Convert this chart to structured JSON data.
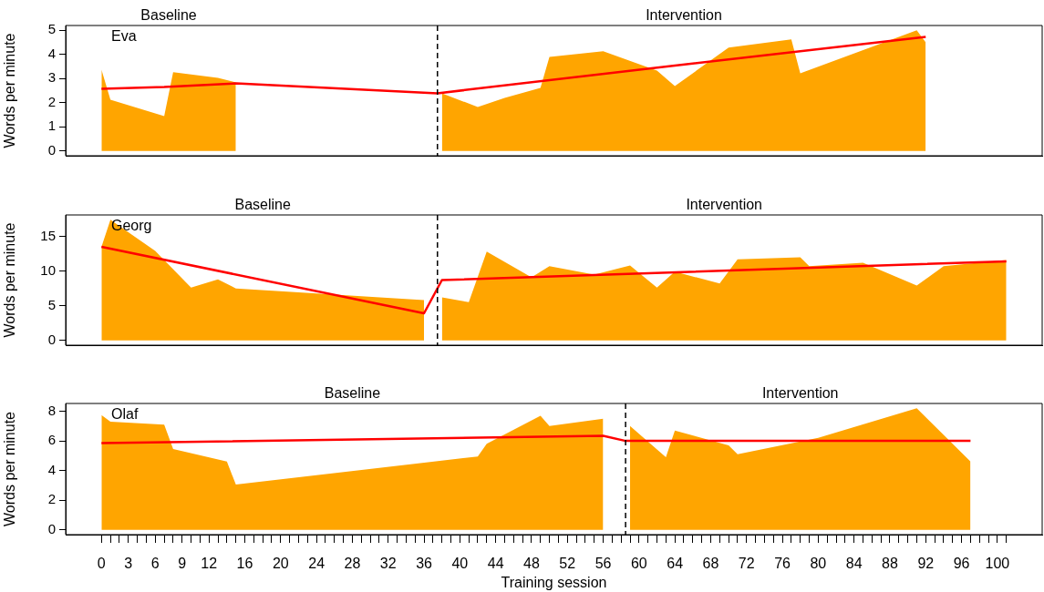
{
  "chart_data": [
    {
      "type": "area",
      "ylabel": "Words per minute",
      "xlim": [
        -4,
        105
      ],
      "ylim": [
        -0.2,
        5.2
      ],
      "yticks": [
        0,
        1,
        2,
        3,
        4,
        5
      ],
      "tick_labels": "y",
      "grid": false,
      "legend": false,
      "marker": "none",
      "annotations": [
        "Baseline",
        "Intervention",
        "Eva"
      ],
      "ref_lines": [
        {
          "axis": "x",
          "value": 37.5,
          "color": "#000000",
          "line_style": "dashed"
        }
      ],
      "series": [
        {
          "color": "#ffa500",
          "x": [
            0,
            1,
            7,
            8,
            13,
            15
          ],
          "values": [
            3.37,
            2.12,
            1.44,
            3.26,
            3.03,
            2.84
          ]
        },
        {
          "color": "#ffa500",
          "x": [
            38,
            42,
            45,
            49,
            50,
            56,
            62,
            64,
            70,
            77,
            78,
            91,
            92
          ],
          "values": [
            2.39,
            1.82,
            2.2,
            2.61,
            3.9,
            4.13,
            3.33,
            2.69,
            4.28,
            4.62,
            3.22,
            5.0,
            4.5
          ]
        },
        {
          "type": "line",
          "color": "#ff0000",
          "line_style": "solid",
          "x": [
            0,
            7,
            15,
            37.5,
            64,
            92
          ],
          "values": [
            2.58,
            2.65,
            2.8,
            2.39,
            3.54,
            4.73
          ]
        }
      ]
    },
    {
      "type": "area",
      "ylabel": "Words per minute",
      "xlim": [
        -4,
        105
      ],
      "ylim": [
        -0.7,
        18.1
      ],
      "yticks": [
        0,
        5,
        10,
        15
      ],
      "tick_labels": "y",
      "grid": false,
      "legend": false,
      "marker": "none",
      "annotations": [
        "Baseline",
        "Intervention",
        "Georg"
      ],
      "ref_lines": [
        {
          "axis": "x",
          "value": 37.5,
          "color": "#000000",
          "line_style": "dashed"
        }
      ],
      "series": [
        {
          "color": "#ffa500",
          "x": [
            0,
            1,
            6,
            10,
            13,
            15,
            36
          ],
          "values": [
            13.5,
            17.4,
            12.9,
            7.6,
            8.8,
            7.5,
            5.8
          ]
        },
        {
          "color": "#ffa500",
          "x": [
            38,
            41,
            43,
            48,
            50,
            55,
            59,
            62,
            64,
            69,
            71,
            78,
            79,
            85,
            91,
            94,
            101
          ],
          "values": [
            6.2,
            5.5,
            12.8,
            9.1,
            10.7,
            9.5,
            10.8,
            7.6,
            9.9,
            8.2,
            11.7,
            12.0,
            10.7,
            11.2,
            7.9,
            10.7,
            11.6
          ]
        },
        {
          "type": "line",
          "color": "#ff0000",
          "line_style": "solid",
          "x": [
            0,
            36,
            38,
            101
          ],
          "values": [
            13.5,
            3.9,
            8.7,
            11.4
          ]
        }
      ]
    },
    {
      "type": "area",
      "xlabel": "Training session",
      "ylabel": "Words per minute",
      "xlim": [
        -4,
        105
      ],
      "ylim": [
        -0.33,
        8.53
      ],
      "yticks": [
        0,
        2,
        4,
        6,
        8
      ],
      "grid": false,
      "legend": false,
      "marker": "none",
      "xticks": [
        0,
        {
          "value": 1,
          "label": null
        },
        {
          "value": 2,
          "label": null
        },
        3,
        {
          "value": 4,
          "label": null
        },
        {
          "value": 5,
          "label": null
        },
        6,
        {
          "value": 7,
          "label": null
        },
        {
          "value": 8,
          "label": null
        },
        9,
        {
          "value": 10,
          "label": null
        },
        {
          "value": 11,
          "label": null
        },
        12,
        {
          "value": 13,
          "label": null
        },
        {
          "value": 14,
          "label": null
        },
        {
          "value": 15,
          "label": null
        },
        16,
        {
          "value": 17,
          "label": null
        },
        {
          "value": 18,
          "label": null
        },
        {
          "value": 19,
          "label": null
        },
        20,
        {
          "value": 21,
          "label": null
        },
        {
          "value": 22,
          "label": null
        },
        {
          "value": 23,
          "label": null
        },
        24,
        {
          "value": 25,
          "label": null
        },
        {
          "value": 26,
          "label": null
        },
        {
          "value": 27,
          "label": null
        },
        28,
        {
          "value": 29,
          "label": null
        },
        {
          "value": 30,
          "label": null
        },
        {
          "value": 31,
          "label": null
        },
        32,
        {
          "value": 33,
          "label": null
        },
        {
          "value": 34,
          "label": null
        },
        {
          "value": 35,
          "label": null
        },
        36,
        {
          "value": 37,
          "label": null
        },
        {
          "value": 38,
          "label": null
        },
        {
          "value": 39,
          "label": null
        },
        40,
        {
          "value": 41,
          "label": null
        },
        {
          "value": 42,
          "label": null
        },
        {
          "value": 43,
          "label": null
        },
        44,
        {
          "value": 45,
          "label": null
        },
        {
          "value": 46,
          "label": null
        },
        {
          "value": 47,
          "label": null
        },
        48,
        {
          "value": 49,
          "label": null
        },
        {
          "value": 50,
          "label": null
        },
        {
          "value": 51,
          "label": null
        },
        52,
        {
          "value": 53,
          "label": null
        },
        {
          "value": 54,
          "label": null
        },
        {
          "value": 55,
          "label": null
        },
        56,
        {
          "value": 57,
          "label": null
        },
        {
          "value": 58,
          "label": null
        },
        {
          "value": 59,
          "label": null
        },
        60,
        {
          "value": 61,
          "label": null
        },
        {
          "value": 62,
          "label": null
        },
        {
          "value": 63,
          "label": null
        },
        64,
        {
          "value": 65,
          "label": null
        },
        {
          "value": 66,
          "label": null
        },
        {
          "value": 67,
          "label": null
        },
        68,
        {
          "value": 69,
          "label": null
        },
        {
          "value": 70,
          "label": null
        },
        {
          "value": 71,
          "label": null
        },
        72,
        {
          "value": 73,
          "label": null
        },
        {
          "value": 74,
          "label": null
        },
        {
          "value": 75,
          "label": null
        },
        76,
        {
          "value": 77,
          "label": null
        },
        {
          "value": 78,
          "label": null
        },
        {
          "value": 79,
          "label": null
        },
        80,
        {
          "value": 81,
          "label": null
        },
        {
          "value": 82,
          "label": null
        },
        {
          "value": 83,
          "label": null
        },
        84,
        {
          "value": 85,
          "label": null
        },
        {
          "value": 86,
          "label": null
        },
        {
          "value": 87,
          "label": null
        },
        88,
        {
          "value": 89,
          "label": null
        },
        {
          "value": 90,
          "label": null
        },
        {
          "value": 91,
          "label": null
        },
        92,
        {
          "value": 93,
          "label": null
        },
        {
          "value": 94,
          "label": null
        },
        {
          "value": 95,
          "label": null
        },
        96,
        {
          "value": 97,
          "label": null
        },
        {
          "value": 98,
          "label": null
        },
        {
          "value": 99,
          "label": null
        },
        100,
        {
          "value": 101,
          "label": null
        }
      ],
      "annotations": [
        "Baseline",
        "Intervention",
        "Olaf"
      ],
      "ref_lines": [
        {
          "axis": "x",
          "value": 58.5,
          "color": "#000000",
          "line_style": "dashed"
        }
      ],
      "series": [
        {
          "color": "#ffa500",
          "x": [
            0,
            1,
            7,
            8,
            14,
            15,
            42,
            43,
            49,
            50,
            56
          ],
          "values": [
            7.75,
            7.3,
            7.1,
            5.45,
            4.6,
            3.05,
            4.95,
            5.8,
            7.7,
            7.0,
            7.5
          ]
        },
        {
          "color": "#ffa500",
          "x": [
            59,
            63,
            64,
            70,
            71,
            80,
            91,
            97
          ],
          "values": [
            7.0,
            4.9,
            6.7,
            5.7,
            5.1,
            6.2,
            8.2,
            4.6
          ]
        },
        {
          "type": "line",
          "color": "#ff0000",
          "line_style": "solid",
          "x": [
            0,
            56,
            58.5,
            97
          ],
          "values": [
            5.85,
            6.35,
            6.0,
            6.0
          ]
        }
      ]
    }
  ]
}
